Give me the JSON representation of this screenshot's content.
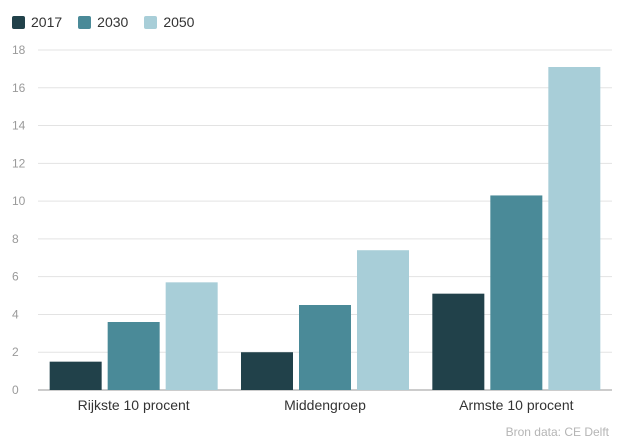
{
  "chart_data": {
    "type": "bar",
    "categories": [
      "Rijkste 10 procent",
      "Middengroep",
      "Armste 10 procent"
    ],
    "series": [
      {
        "name": "2017",
        "color": "#21414a",
        "values": [
          1.5,
          2.0,
          5.1
        ]
      },
      {
        "name": "2030",
        "color": "#4a8a98",
        "values": [
          3.6,
          4.5,
          10.3
        ]
      },
      {
        "name": "2050",
        "color": "#a8ced8",
        "values": [
          5.7,
          7.4,
          17.1
        ]
      }
    ],
    "yticks": [
      0,
      2,
      4,
      6,
      8,
      10,
      12,
      14,
      16,
      18
    ],
    "ylim": [
      0,
      18
    ],
    "grid": true,
    "legend_position": "top-left",
    "source": "Bron data: CE Delft"
  }
}
